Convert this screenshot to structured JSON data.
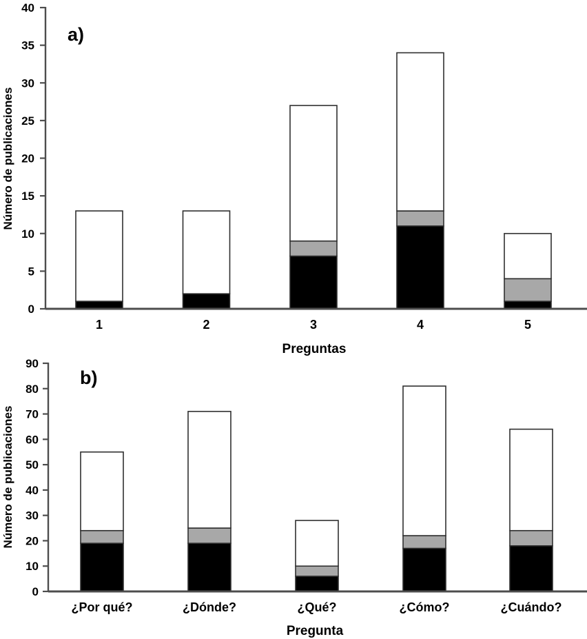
{
  "figure": {
    "description": "Two stacked bar charts of number of publications per question type",
    "background_color": "#ffffff",
    "colors": {
      "segment_black": "#000000",
      "segment_gray": "#a8a8a8",
      "segment_white": "#ffffff",
      "segment_border": "#2f2f2f",
      "axis_line": "#4d4d4d",
      "text": "#000000"
    }
  },
  "chart_data": [
    {
      "id": "chart-a",
      "type": "bar",
      "stacked": true,
      "panel_label": "a)",
      "xlabel": "Preguntas",
      "ylabel": "Número de publicaciones",
      "categories": [
        "1",
        "2",
        "3",
        "4",
        "5"
      ],
      "series": [
        {
          "name": "black-segment",
          "color": "#000000",
          "values": [
            1,
            2,
            7,
            11,
            1
          ]
        },
        {
          "name": "gray-segment",
          "color": "#a8a8a8",
          "values": [
            0,
            0,
            2,
            2,
            3
          ]
        },
        {
          "name": "white-segment",
          "color": "#ffffff",
          "values": [
            12,
            11,
            18,
            21,
            6
          ]
        }
      ],
      "totals": [
        13,
        13,
        27,
        34,
        10
      ],
      "ylim": [
        0,
        40
      ],
      "ytick_step": 5,
      "grid": false,
      "legend": false
    },
    {
      "id": "chart-b",
      "type": "bar",
      "stacked": true,
      "panel_label": "b)",
      "xlabel": "Pregunta",
      "ylabel": "Número de publicaciones",
      "categories": [
        "¿Por qué?",
        "¿Dónde?",
        "¿Qué?",
        "¿Cómo?",
        "¿Cuándo?"
      ],
      "series": [
        {
          "name": "black-segment",
          "color": "#000000",
          "values": [
            19,
            19,
            6,
            17,
            18
          ]
        },
        {
          "name": "gray-segment",
          "color": "#a8a8a8",
          "values": [
            5,
            6,
            4,
            5,
            6
          ]
        },
        {
          "name": "white-segment",
          "color": "#ffffff",
          "values": [
            31,
            46,
            18,
            59,
            40
          ]
        }
      ],
      "totals": [
        55,
        71,
        28,
        81,
        64
      ],
      "ylim": [
        0,
        90
      ],
      "ytick_step": 10,
      "grid": false,
      "legend": false
    }
  ]
}
